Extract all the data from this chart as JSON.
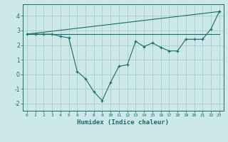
{
  "title": "",
  "xlabel": "Humidex (Indice chaleur)",
  "ylabel": "",
  "background_color": "#cde8e8",
  "grid_color": "#aed0d0",
  "line_color": "#1a6b6b",
  "xlim": [
    -0.5,
    23.5
  ],
  "ylim": [
    -2.5,
    4.8
  ],
  "yticks": [
    -2,
    -1,
    0,
    1,
    2,
    3,
    4
  ],
  "xticks": [
    0,
    1,
    2,
    3,
    4,
    5,
    6,
    7,
    8,
    9,
    10,
    11,
    12,
    13,
    14,
    15,
    16,
    17,
    18,
    19,
    20,
    21,
    22,
    23
  ],
  "line1_x": [
    0,
    23
  ],
  "line1_y": [
    2.75,
    2.75
  ],
  "line2_x": [
    0,
    23
  ],
  "line2_y": [
    2.75,
    4.3
  ],
  "line3_x": [
    0,
    1,
    2,
    3,
    4,
    5,
    6,
    7,
    8,
    9,
    10,
    11,
    12,
    13,
    14,
    15,
    16,
    17,
    18,
    19,
    20,
    21,
    22,
    23
  ],
  "line3_y": [
    2.75,
    2.75,
    2.75,
    2.75,
    2.6,
    2.5,
    0.2,
    -0.3,
    -1.2,
    -1.8,
    -0.55,
    0.55,
    0.65,
    2.25,
    1.9,
    2.15,
    1.85,
    1.6,
    1.6,
    2.4,
    2.4,
    2.4,
    3.1,
    4.3
  ]
}
